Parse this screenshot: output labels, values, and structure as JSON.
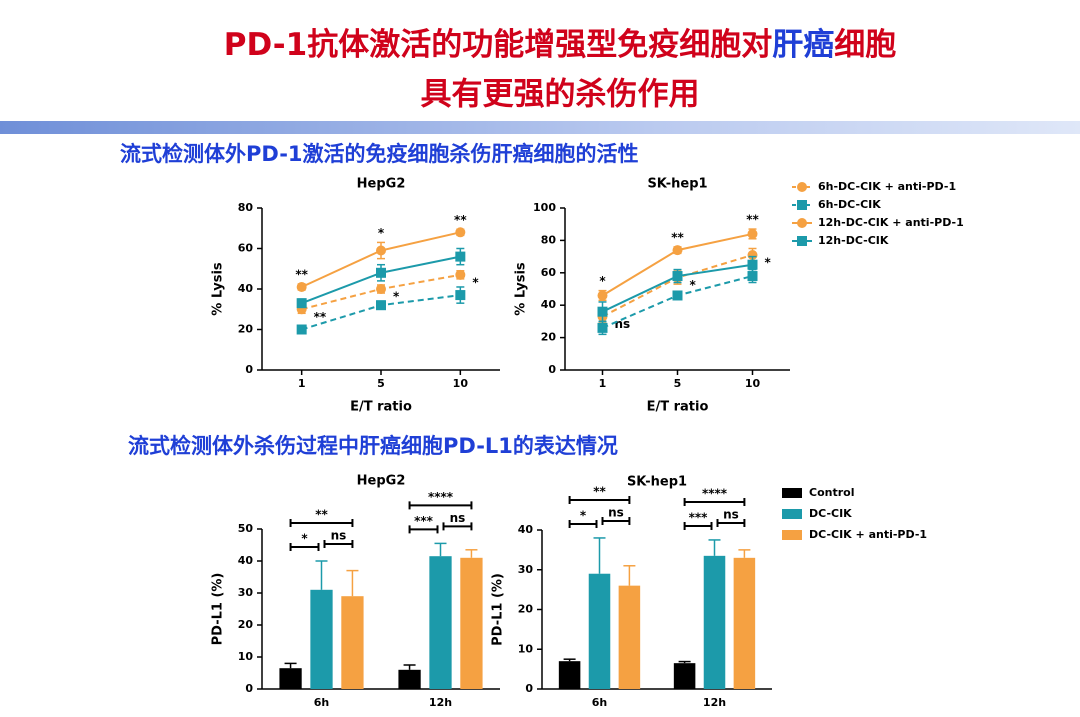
{
  "header": {
    "title_line1": [
      "PD-1抗体激活的功能增强型免疫细胞对",
      "肝癌",
      "细胞"
    ],
    "title_line2": "具有更强的杀伤作用"
  },
  "sections": [
    "流式检测体外PD-1激活的免疫细胞杀伤肝癌细胞的活性",
    "流式检测体外杀伤过程中肝癌细胞PD-L1的表达情况"
  ],
  "chart_data": [
    {
      "type": "line",
      "title": "HepG2",
      "xlabel": "E/T ratio",
      "ylabel": "% Lysis",
      "categories": [
        "1",
        "5",
        "10"
      ],
      "ylim": [
        0,
        80
      ],
      "yticks": [
        0,
        20,
        40,
        60,
        80
      ],
      "legend": false,
      "series": [
        {
          "color": "#F5A142",
          "dashed": true,
          "marker": "circle",
          "values": [
            30,
            40,
            47
          ],
          "errors": [
            2,
            2,
            2
          ],
          "significance": [
            "**",
            "*",
            "*"
          ]
        },
        {
          "color": "#1C9AAA",
          "dashed": true,
          "marker": "square",
          "values": [
            20,
            32,
            37
          ],
          "errors": [
            1.5,
            2,
            4
          ]
        },
        {
          "color": "#F5A142",
          "dashed": false,
          "marker": "circle",
          "values": [
            41,
            59,
            68
          ],
          "errors": [
            1.5,
            4,
            1.5
          ],
          "significance": [
            "**",
            "*",
            "**"
          ]
        },
        {
          "color": "#1C9AAA",
          "dashed": false,
          "marker": "square",
          "values": [
            33,
            48,
            56
          ],
          "errors": [
            2,
            4,
            4
          ]
        }
      ]
    },
    {
      "type": "line",
      "title": "SK-hep1",
      "xlabel": "E/T ratio",
      "ylabel": "% Lysis",
      "categories": [
        "1",
        "5",
        "10"
      ],
      "ylim": [
        0,
        100
      ],
      "yticks": [
        0,
        20,
        40,
        60,
        80,
        100
      ],
      "legend": "right",
      "series": [
        {
          "name": "6h-DC-CIK + anti-PD-1",
          "color": "#F5A142",
          "dashed": true,
          "marker": "circle",
          "values": [
            33,
            57,
            71
          ],
          "errors": [
            4,
            4,
            4
          ],
          "significance": [
            "ns",
            "*",
            "*"
          ]
        },
        {
          "name": "6h-DC-CIK",
          "color": "#1C9AAA",
          "dashed": true,
          "marker": "square",
          "values": [
            26,
            46,
            58
          ],
          "errors": [
            4,
            2,
            4
          ]
        },
        {
          "name": "12h-DC-CIK + anti-PD-1",
          "color": "#F5A142",
          "dashed": false,
          "marker": "circle",
          "values": [
            46,
            74,
            84
          ],
          "errors": [
            3,
            2,
            3
          ],
          "significance": [
            "*",
            "**",
            "**"
          ]
        },
        {
          "name": "12h-DC-CIK",
          "color": "#1C9AAA",
          "dashed": false,
          "marker": "square",
          "values": [
            36,
            58,
            65
          ],
          "errors": [
            6,
            4,
            5
          ]
        }
      ]
    },
    {
      "type": "bar",
      "title": "HepG2",
      "ylabel": "PD-L1 (%)",
      "categories": [
        "6h",
        "12h"
      ],
      "ylim": [
        0,
        50
      ],
      "yticks": [
        0,
        10,
        20,
        30,
        40,
        50
      ],
      "legend": false,
      "brackets": [
        [
          "*",
          "ns",
          "**"
        ],
        [
          "***",
          "ns",
          "****"
        ]
      ],
      "series": [
        {
          "color": "#000000",
          "values": [
            6.5,
            6
          ],
          "errors": [
            1.5,
            1.5
          ]
        },
        {
          "color": "#1C9AAA",
          "values": [
            31,
            41.5
          ],
          "errors": [
            9,
            4
          ]
        },
        {
          "color": "#F5A142",
          "values": [
            29,
            41
          ],
          "errors": [
            8,
            2.5
          ]
        }
      ]
    },
    {
      "type": "bar",
      "title": "SK-hep1",
      "ylabel": "PD-L1 (%)",
      "categories": [
        "6h",
        "12h"
      ],
      "ylim": [
        0,
        40
      ],
      "yticks": [
        0,
        10,
        20,
        30,
        40
      ],
      "legend": "right",
      "brackets": [
        [
          "*",
          "ns",
          "**"
        ],
        [
          "***",
          "ns",
          "****"
        ]
      ],
      "series": [
        {
          "name": "Control",
          "color": "#000000",
          "values": [
            7,
            6.5
          ],
          "errors": [
            0.5,
            0.4
          ]
        },
        {
          "name": "DC-CIK",
          "color": "#1C9AAA",
          "values": [
            29,
            33.5
          ],
          "errors": [
            9,
            4
          ]
        },
        {
          "name": "DC-CIK + anti-PD-1",
          "color": "#F5A142",
          "values": [
            26,
            33
          ],
          "errors": [
            5,
            2
          ]
        }
      ]
    }
  ]
}
